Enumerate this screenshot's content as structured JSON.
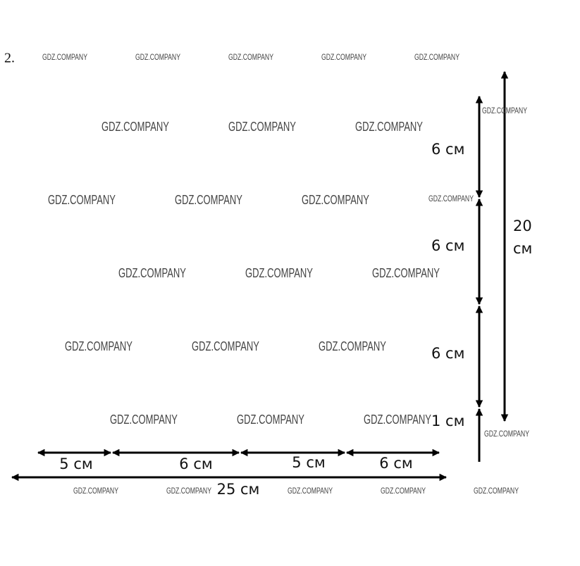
{
  "number": "2.",
  "watermark": "GDZ.COMPANY",
  "vertical": {
    "segments": [
      "6 см",
      "6 см",
      "6 см",
      "1 см"
    ],
    "total_lines": [
      "20",
      "см"
    ]
  },
  "horizontal": {
    "segments": [
      "5 см",
      "6 см",
      "5 см",
      "6 см"
    ],
    "total": "25 см"
  }
}
